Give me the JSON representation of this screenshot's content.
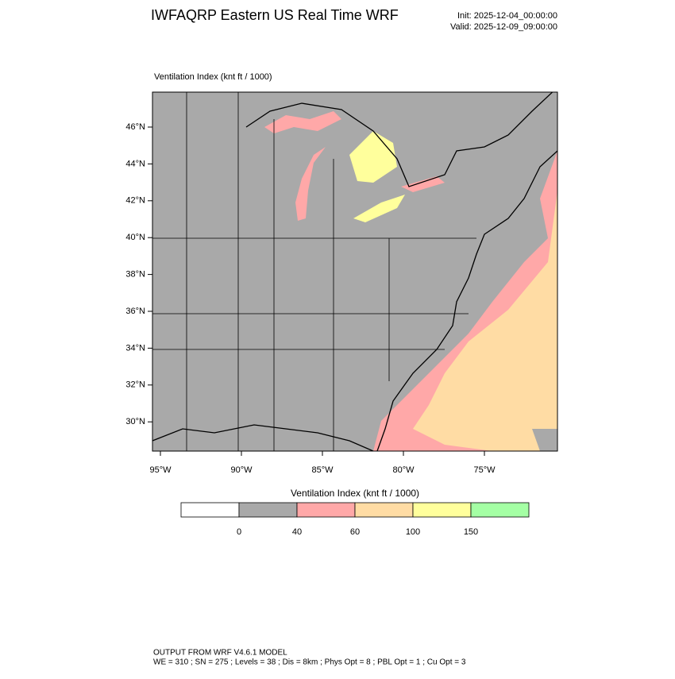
{
  "header": {
    "title": "IWFAQRP Eastern US Real Time WRF",
    "init": "Init: 2025-12-04_00:00:00",
    "valid": "Valid: 2025-12-09_09:00:00"
  },
  "map": {
    "label": "Ventilation Index   (knt ft / 1000)",
    "lat_labels": [
      "46°N",
      "44°N",
      "42°N",
      "40°N",
      "38°N",
      "36°N",
      "34°N",
      "32°N",
      "30°N"
    ],
    "lon_labels": [
      "95°W",
      "90°W",
      "85°W",
      "80°W",
      "75°W"
    ]
  },
  "colorbar": {
    "title": "Ventilation Index  (knt ft / 1000)",
    "colors": [
      "#ffffff",
      "#a9a9a9",
      "#ffa8a8",
      "#ffdca4",
      "#ffff9c",
      "#a4ffa4"
    ],
    "labels": [
      "0",
      "40",
      "60",
      "100",
      "150"
    ]
  },
  "footer": {
    "line1": "OUTPUT FROM WRF V4.6.1 MODEL",
    "line2": "WE = 310 ; SN = 275 ; Levels = 38 ; Dis = 8km ; Phys Opt = 8 ; PBL Opt = 1 ; Cu Opt = 3"
  }
}
